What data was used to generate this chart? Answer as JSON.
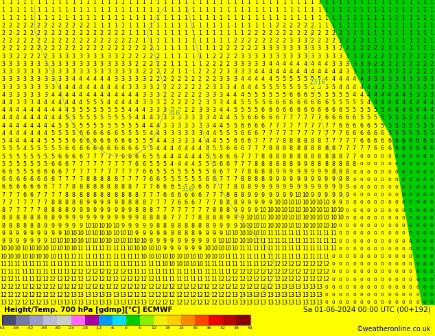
{
  "title_left": "Height/Temp. 700 hPa [gdmp][°C] ECMWF",
  "title_right": "Sa 01-06-2024 00:00 UTC (00+192)",
  "credit": "©weatheronline.co.uk",
  "figsize": [
    6.34,
    4.9
  ],
  "dpi": 100,
  "bg_yellow": "#ffff00",
  "bg_green": "#00cc00",
  "contour_color": "#aaaaaa",
  "label_316_color": "#6699cc",
  "text_color": "#000000",
  "colorbar_colors": [
    "#4a4a7a",
    "#7777aa",
    "#9999cc",
    "#bbbbdd",
    "#cccccc",
    "#ff66ff",
    "#aa00aa",
    "#0099ff",
    "#00ddff",
    "#00cc00",
    "#88ee00",
    "#eeee00",
    "#ffcc00",
    "#ff8800",
    "#ff4400",
    "#ee0000",
    "#bb0000",
    "#880000"
  ],
  "tick_labels": [
    "-54",
    "-48",
    "-42",
    "-38",
    "-30",
    "-24",
    "-18",
    "-12",
    "-6",
    "0",
    "6",
    "12",
    "18",
    "24",
    "30",
    "36",
    "42",
    "48",
    "54"
  ]
}
